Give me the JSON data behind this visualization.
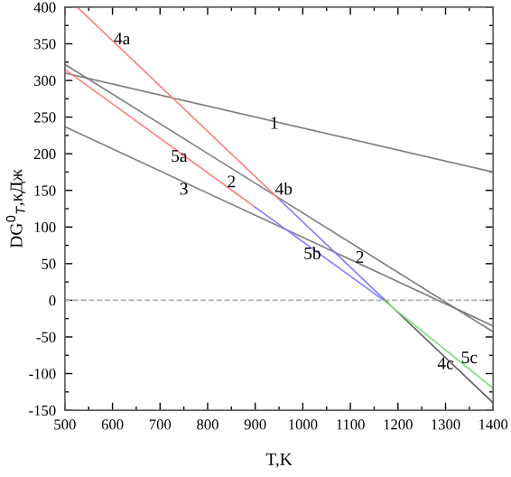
{
  "chart_data": {
    "type": "line",
    "xlabel": "T,K",
    "ylabel": "DG$^{0}$$_{T}$,кДж",
    "xlim": [
      500,
      1400
    ],
    "xticks": [
      500,
      600,
      700,
      800,
      900,
      1000,
      1100,
      1200,
      1300,
      1400
    ],
    "ylim": [
      -150,
      400
    ],
    "yticks": [
      -150,
      -100,
      -50,
      0,
      50,
      100,
      150,
      200,
      250,
      300,
      350,
      400
    ],
    "grid": false,
    "legend": false,
    "marker": "none",
    "line_style": "solid",
    "ref_lines": [
      {
        "axis": "y",
        "value": 0,
        "label": null,
        "color": "#b0b0b0",
        "line_style": "dashed"
      }
    ],
    "series": [
      {
        "color": "#808080",
        "x": [
          500,
          1400
        ],
        "values": [
          310,
          175
        ]
      },
      {
        "color": "#808080",
        "x": [
          500,
          1400
        ],
        "values": [
          322,
          -43
        ]
      },
      {
        "color": "#808080",
        "x": [
          500,
          1400
        ],
        "values": [
          237,
          -35
        ]
      },
      {
        "color": "#ff8080",
        "x": [
          526,
          953
        ],
        "values": [
          400,
          136
        ]
      },
      {
        "color": "#8080ff",
        "x": [
          953,
          1170
        ],
        "values": [
          136,
          2
        ]
      },
      {
        "color": "#606060",
        "x": [
          1170,
          1400
        ],
        "values": [
          2,
          -140
        ]
      },
      {
        "color": "#ff8080",
        "x": [
          500,
          900
        ],
        "values": [
          315,
          127
        ]
      },
      {
        "color": "#8080ff",
        "x": [
          900,
          1170
        ],
        "values": [
          127,
          0
        ]
      },
      {
        "color": "#80e080",
        "x": [
          1170,
          1400
        ],
        "values": [
          0,
          -120
        ]
      }
    ],
    "annotations": [
      {
        "text": "1",
        "x": 940,
        "y": 240
      },
      {
        "text": "4a",
        "x": 620,
        "y": 355
      },
      {
        "text": "5a",
        "x": 740,
        "y": 195
      },
      {
        "text": "2",
        "x": 850,
        "y": 160
      },
      {
        "text": "4b",
        "x": 960,
        "y": 150
      },
      {
        "text": "3",
        "x": 750,
        "y": 150
      },
      {
        "text": "2",
        "x": 1120,
        "y": 57
      },
      {
        "text": "5b",
        "x": 1020,
        "y": 62
      },
      {
        "text": "5c",
        "x": 1350,
        "y": -80
      },
      {
        "text": "4c",
        "x": 1300,
        "y": -88
      }
    ]
  }
}
